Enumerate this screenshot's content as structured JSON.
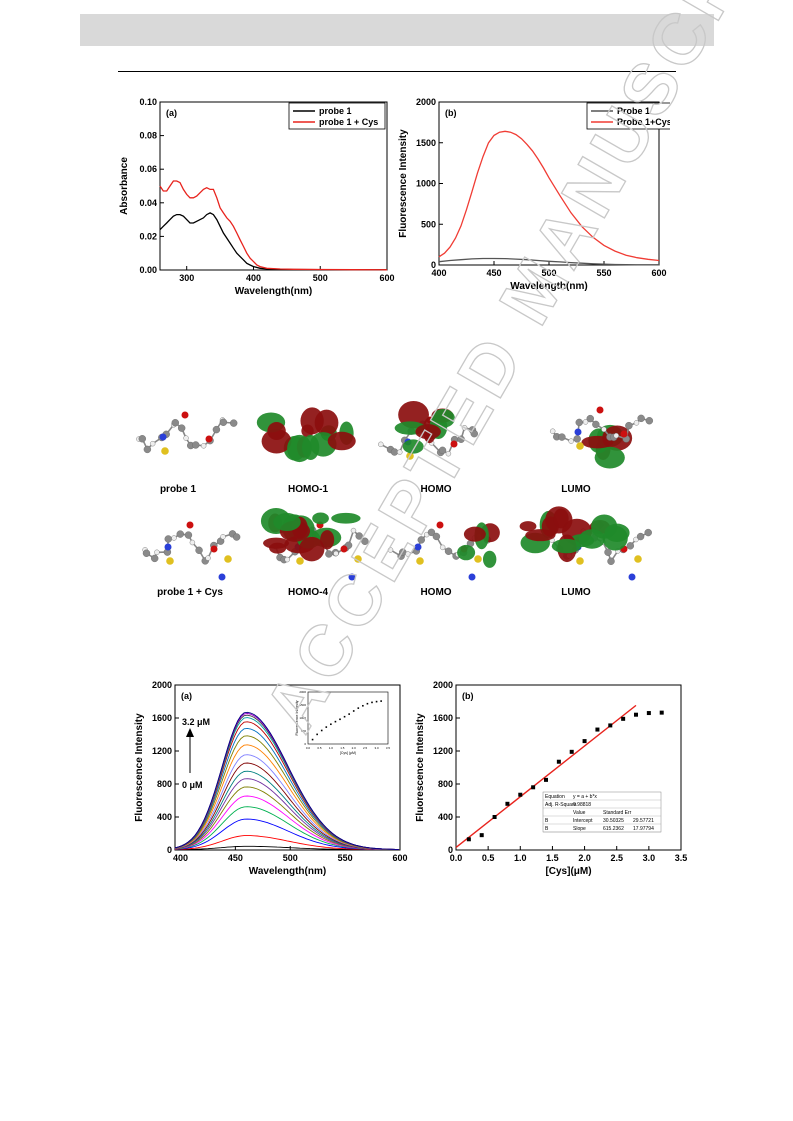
{
  "chart_data": [
    {
      "id": "fig1a",
      "type": "line",
      "panel_label": "(a)",
      "xlabel": "Wavelength(nm)",
      "ylabel": "Absorbance",
      "xlim": [
        260,
        600
      ],
      "ylim": [
        0,
        0.1
      ],
      "xticks": [
        300,
        400,
        500,
        600
      ],
      "yticks": [
        0.0,
        0.02,
        0.04,
        0.06,
        0.08,
        0.1
      ],
      "ytick_labels": [
        "0.00",
        "0.02",
        "0.04",
        "0.06",
        "0.08",
        "0.10"
      ],
      "legend_position": "top-right",
      "series": [
        {
          "name": "probe 1",
          "color": "#000000",
          "x": [
            260,
            265,
            270,
            275,
            280,
            285,
            290,
            295,
            300,
            305,
            310,
            315,
            320,
            325,
            330,
            335,
            340,
            345,
            350,
            355,
            360,
            365,
            370,
            375,
            380,
            385,
            390,
            395,
            400,
            410,
            420,
            440,
            460,
            500,
            550,
            600
          ],
          "y": [
            0.024,
            0.026,
            0.028,
            0.03,
            0.032,
            0.033,
            0.033,
            0.032,
            0.03,
            0.028,
            0.028,
            0.029,
            0.03,
            0.031,
            0.033,
            0.034,
            0.033,
            0.03,
            0.026,
            0.022,
            0.019,
            0.016,
            0.013,
            0.01,
            0.008,
            0.006,
            0.004,
            0.003,
            0.002,
            0.001,
            0.0007,
            0.0004,
            0.0003,
            0.0002,
            0.0001,
            0.0001
          ]
        },
        {
          "name": "probe 1 + Cys",
          "color": "#e8231d",
          "x": [
            260,
            265,
            270,
            275,
            280,
            285,
            290,
            295,
            300,
            305,
            310,
            315,
            320,
            325,
            330,
            335,
            340,
            345,
            350,
            355,
            360,
            365,
            370,
            375,
            380,
            385,
            390,
            395,
            400,
            405,
            410,
            420,
            440,
            460,
            500,
            550,
            600
          ],
          "y": [
            0.05,
            0.047,
            0.047,
            0.05,
            0.053,
            0.053,
            0.052,
            0.048,
            0.045,
            0.043,
            0.043,
            0.044,
            0.046,
            0.048,
            0.049,
            0.048,
            0.048,
            0.043,
            0.037,
            0.034,
            0.031,
            0.029,
            0.026,
            0.022,
            0.018,
            0.014,
            0.01,
            0.007,
            0.005,
            0.003,
            0.002,
            0.001,
            0.0006,
            0.0004,
            0.0003,
            0.0002,
            0.0001
          ]
        }
      ]
    },
    {
      "id": "fig1b",
      "type": "line",
      "panel_label": "(b)",
      "xlabel": "Wavelength(nm)",
      "ylabel": "Fluorescence Intensity",
      "xlim": [
        400,
        600
      ],
      "ylim": [
        0,
        2000
      ],
      "xticks": [
        400,
        450,
        500,
        550,
        600
      ],
      "yticks": [
        0,
        500,
        1000,
        1500,
        2000
      ],
      "legend_position": "top-right",
      "series": [
        {
          "name": "Probe 1",
          "color": "#555555",
          "x": [
            400,
            410,
            420,
            430,
            440,
            450,
            460,
            470,
            480,
            490,
            500,
            510,
            520,
            530,
            540,
            550,
            560,
            570,
            580,
            590,
            600
          ],
          "y": [
            40,
            55,
            65,
            75,
            80,
            80,
            78,
            72,
            65,
            55,
            45,
            38,
            30,
            22,
            15,
            10,
            6,
            4,
            3,
            2,
            2
          ]
        },
        {
          "name": "Probe 1+Cys",
          "color": "#f03c34",
          "x": [
            400,
            405,
            410,
            415,
            420,
            425,
            430,
            435,
            440,
            445,
            450,
            455,
            460,
            465,
            470,
            475,
            480,
            485,
            490,
            495,
            500,
            510,
            520,
            530,
            540,
            550,
            560,
            570,
            580,
            590,
            600
          ],
          "y": [
            100,
            145,
            220,
            330,
            480,
            680,
            900,
            1130,
            1330,
            1500,
            1590,
            1630,
            1640,
            1630,
            1600,
            1550,
            1480,
            1400,
            1300,
            1190,
            1070,
            850,
            640,
            470,
            340,
            240,
            170,
            120,
            90,
            70,
            55
          ]
        }
      ]
    },
    {
      "id": "fig3a",
      "type": "line",
      "panel_label": "(a)",
      "xlabel": "Wavelength(nm)",
      "ylabel": "Fluorescence Intensity",
      "xlim": [
        395,
        600
      ],
      "ylim": [
        0,
        2000
      ],
      "xticks": [
        400,
        450,
        500,
        550,
        600
      ],
      "yticks": [
        0,
        400,
        800,
        1200,
        1600,
        2000
      ],
      "annotations": {
        "top": "3.2 μM",
        "bottom": "0 μM"
      },
      "peak_x": 460,
      "peaks": [
        40,
        170,
        370,
        520,
        650,
        760,
        860,
        950,
        1050,
        1150,
        1270,
        1380,
        1470,
        1550,
        1600,
        1630,
        1650,
        1665
      ],
      "colors": [
        "#000000",
        "#ff0000",
        "#0000ff",
        "#00b050",
        "#ff00ff",
        "#7f7f00",
        "#7030a0",
        "#008080",
        "#800000",
        "#8080ff",
        "#ff8000",
        "#808000",
        "#0070c0",
        "#c00000",
        "#00a0a0",
        "#404040",
        "#9900cc",
        "#000080"
      ],
      "inset": {
        "xlabel": "[Cys] (μM)",
        "ylabel": "Fluorescence Intensity",
        "xticks": [
          0.0,
          0.5,
          1.0,
          1.5,
          2.0,
          2.5,
          3.0,
          3.5
        ],
        "yticks": [
          0,
          500,
          1000,
          1500,
          2000
        ],
        "x": [
          0.2,
          0.4,
          0.6,
          0.8,
          1.0,
          1.2,
          1.4,
          1.6,
          1.8,
          2.0,
          2.2,
          2.4,
          2.6,
          2.8,
          3.0,
          3.2
        ],
        "y": [
          170,
          370,
          520,
          650,
          760,
          860,
          950,
          1050,
          1150,
          1270,
          1380,
          1470,
          1550,
          1600,
          1630,
          1650
        ]
      }
    },
    {
      "id": "fig3b",
      "type": "scatter",
      "panel_label": "(b)",
      "xlabel": "[Cys](μM)",
      "ylabel": "Fluorescence Intensity",
      "xlim": [
        0.0,
        3.5
      ],
      "ylim": [
        0,
        2000
      ],
      "xticks": [
        0.0,
        0.5,
        1.0,
        1.5,
        2.0,
        2.5,
        3.0,
        3.5
      ],
      "xtick_labels": [
        "0.0",
        "0.5",
        "1.0",
        "1.5",
        "2.0",
        "2.5",
        "3.0",
        "3.5"
      ],
      "yticks": [
        0,
        400,
        800,
        1200,
        1600,
        2000
      ],
      "points": {
        "x": [
          0.2,
          0.4,
          0.6,
          0.8,
          1.0,
          1.2,
          1.4,
          1.6,
          1.8,
          2.0,
          2.2,
          2.4,
          2.6,
          2.8,
          3.0,
          3.2
        ],
        "y": [
          130,
          180,
          400,
          560,
          670,
          760,
          850,
          1070,
          1190,
          1320,
          1460,
          1510,
          1590,
          1640,
          1660,
          1665
        ]
      },
      "fit_line": {
        "intercept": 30.50325,
        "slope": 615.2362,
        "x_range": [
          0.0,
          2.8
        ],
        "color": "#e8231d"
      },
      "fit_table": {
        "rows": [
          [
            "Equation",
            "y = a + b*x",
            ""
          ],
          [
            "Adj. R-Square",
            "0.98818",
            ""
          ],
          [
            "",
            "Value",
            "Standard Err"
          ],
          [
            "B",
            "Intercept",
            "30.50325",
            "29.57721"
          ],
          [
            "B",
            "Slope",
            "615.2362",
            "17.97794"
          ]
        ]
      }
    }
  ],
  "orbitals": {
    "row1": [
      "probe 1",
      "HOMO-1",
      "HOMO",
      "LUMO"
    ],
    "row2": [
      "probe 1 + Cys",
      "HOMO-4",
      "HOMO",
      "LUMO"
    ]
  }
}
